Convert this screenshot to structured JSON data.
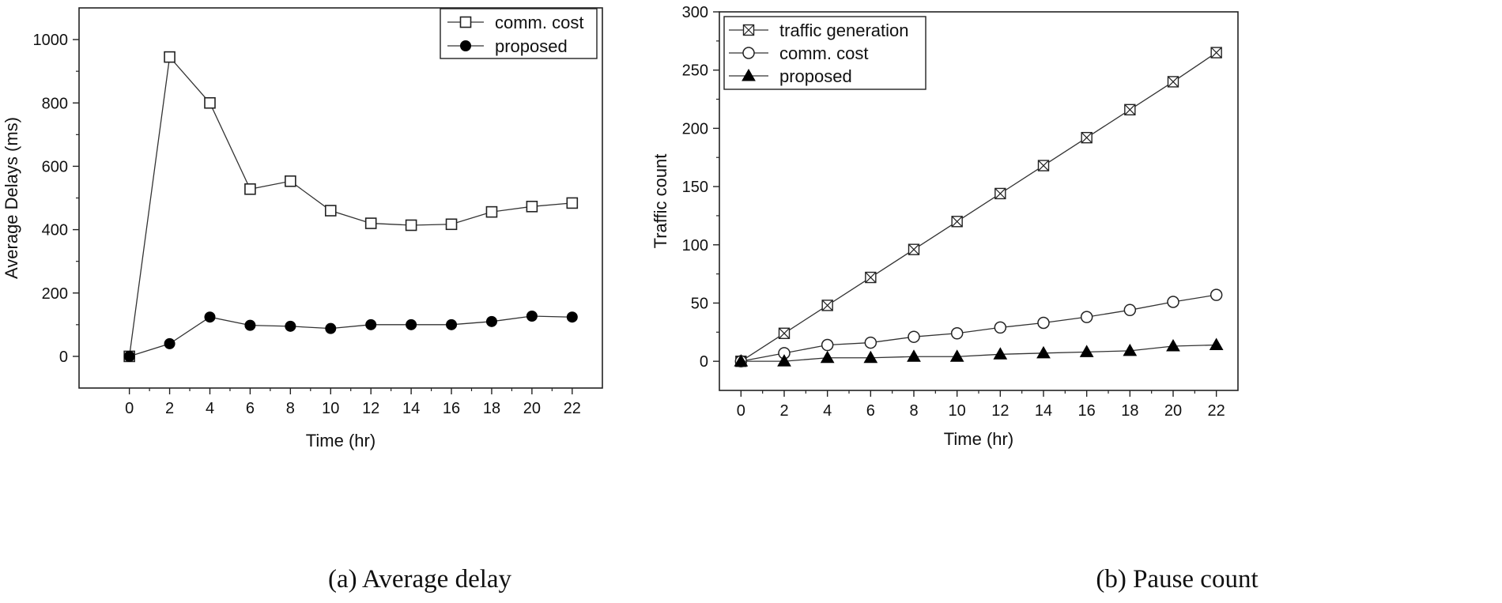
{
  "chart_data": [
    {
      "type": "line",
      "caption": "(a) Average delay",
      "xlabel": "Time (hr)",
      "ylabel": "Average Delays (ms)",
      "x": [
        0,
        2,
        4,
        6,
        8,
        10,
        12,
        14,
        16,
        18,
        20,
        22
      ],
      "xlim": [
        -2.5,
        23.5
      ],
      "ylim": [
        -100,
        1100
      ],
      "xticks": [
        0,
        2,
        4,
        6,
        8,
        10,
        12,
        14,
        16,
        18,
        20,
        22
      ],
      "yticks": [
        0,
        200,
        400,
        600,
        800,
        1000
      ],
      "legend_position": "top-right",
      "series": [
        {
          "name": "comm. cost",
          "marker": "open-square",
          "values": [
            0,
            945,
            800,
            528,
            553,
            460,
            420,
            414,
            417,
            456,
            473,
            484
          ]
        },
        {
          "name": "proposed",
          "marker": "filled-circle",
          "values": [
            0,
            40,
            124,
            98,
            95,
            88,
            100,
            100,
            100,
            110,
            127,
            124
          ]
        }
      ]
    },
    {
      "type": "line",
      "caption": "(b) Pause count",
      "xlabel": "Time (hr)",
      "ylabel": "Traffic count",
      "x": [
        0,
        2,
        4,
        6,
        8,
        10,
        12,
        14,
        16,
        18,
        20,
        22
      ],
      "xlim": [
        -1,
        23
      ],
      "ylim": [
        -25,
        300
      ],
      "xticks": [
        0,
        2,
        4,
        6,
        8,
        10,
        12,
        14,
        16,
        18,
        20,
        22
      ],
      "yticks": [
        0,
        50,
        100,
        150,
        200,
        250,
        300
      ],
      "legend_position": "top-left",
      "series": [
        {
          "name": "traffic generation",
          "marker": "crossed-square",
          "values": [
            0,
            24,
            48,
            72,
            96,
            120,
            144,
            168,
            192,
            216,
            240,
            265
          ]
        },
        {
          "name": "comm. cost",
          "marker": "open-circle",
          "values": [
            0,
            7,
            14,
            16,
            21,
            24,
            29,
            33,
            38,
            44,
            51,
            57
          ]
        },
        {
          "name": "proposed",
          "marker": "filled-triangle",
          "values": [
            0,
            0,
            3,
            3,
            4,
            4,
            6,
            7,
            8,
            9,
            13,
            14
          ]
        }
      ]
    }
  ]
}
